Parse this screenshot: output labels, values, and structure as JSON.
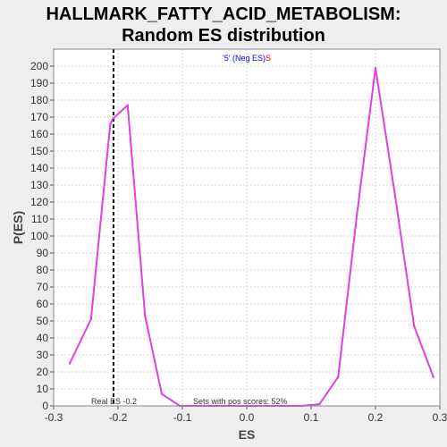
{
  "title_line1": "HALLMARK_FATTY_ACID_METABOLISM:",
  "title_line2": "Random ES distribution",
  "colors": {
    "line": "#e040e0",
    "plot_bg": "#ffffff",
    "grid": "#d8d8d8",
    "real_es_line": "#000000",
    "legend_quote": "#0000ff",
    "legend_neg": "#0000ff",
    "legend_s": "#ff0000"
  },
  "legend": {
    "part1": "'5' (Neg ES)",
    "part2": "S",
    "position": "top-center"
  },
  "annotations": {
    "real_es_label": "Real ES -0.2",
    "pos_scores_label": "Sets with pos scores: 52%"
  },
  "chart_data": {
    "type": "line",
    "xlabel": "ES",
    "ylabel": "P(ES)",
    "xlim": [
      -0.3,
      0.3
    ],
    "ylim": [
      0,
      210
    ],
    "x_ticks": [
      -0.3,
      -0.2,
      -0.1,
      0.0,
      0.1,
      0.2,
      0.3
    ],
    "x_tick_labels": [
      "-0.3",
      "-0.2",
      "-0.1",
      "0.0",
      "0.1",
      "0.2",
      "0.3"
    ],
    "y_ticks": [
      0,
      10,
      20,
      30,
      40,
      50,
      60,
      70,
      80,
      90,
      100,
      110,
      120,
      130,
      140,
      150,
      160,
      170,
      180,
      190,
      200
    ],
    "grid": true,
    "real_es": -0.207,
    "series": [
      {
        "x": [
          -0.275,
          -0.242,
          -0.212,
          -0.208,
          -0.185,
          -0.158,
          -0.132,
          -0.104,
          0.0,
          0.085,
          0.113,
          0.142,
          0.171,
          0.2,
          0.23,
          0.26,
          0.29
        ],
        "y": [
          25,
          51,
          166,
          169,
          177,
          53,
          7,
          0,
          0,
          0,
          1,
          17,
          112,
          199,
          125,
          47,
          17
        ]
      }
    ]
  }
}
